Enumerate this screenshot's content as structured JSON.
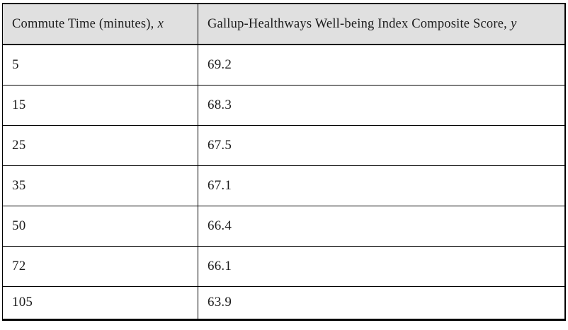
{
  "table": {
    "header": [
      {
        "label": "Commute Time (minutes),",
        "variable": "x"
      },
      {
        "label": "Gallup-Healthways Well-being Index Composite Score,",
        "variable": "y"
      }
    ],
    "rows": [
      {
        "x": "5",
        "y": "69.2"
      },
      {
        "x": "15",
        "y": "68.3"
      },
      {
        "x": "25",
        "y": "67.5"
      },
      {
        "x": "35",
        "y": "67.1"
      },
      {
        "x": "50",
        "y": "66.4"
      },
      {
        "x": "72",
        "y": "66.1"
      },
      {
        "x": "105",
        "y": "63.9"
      }
    ]
  },
  "colors": {
    "header_background": "#e0e0e0",
    "border": "#000000",
    "text": "#1c1c1c",
    "page_background": "#ffffff"
  },
  "chart_data": {
    "type": "table",
    "columns": [
      "Commute Time (minutes), x",
      "Gallup-Healthways Well-being Index Composite Score, y"
    ],
    "x": [
      5,
      15,
      25,
      35,
      50,
      72,
      105
    ],
    "y": [
      69.2,
      68.3,
      67.5,
      67.1,
      66.4,
      66.1,
      63.9
    ]
  }
}
